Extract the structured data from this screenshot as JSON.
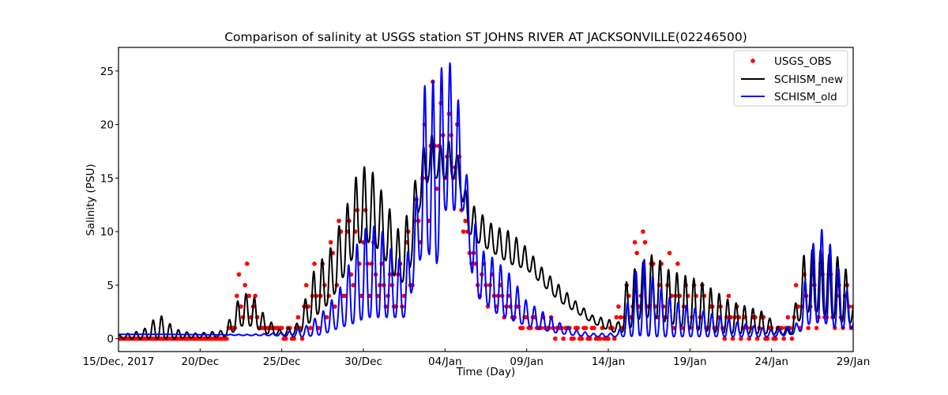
{
  "chart_data": {
    "type": "line",
    "title": "Comparison of salinity at USGS station ST JOHNS RIVER AT JACKSONVILLE(02246500)",
    "xlabel": "Time (Day)",
    "ylabel": "Salinity (PSU)",
    "x_unit": "days since 15/Dec/2017",
    "xlim": [
      0,
      45
    ],
    "ylim": [
      -1.2,
      27.2
    ],
    "x_ticks": [
      {
        "value": 0,
        "label": "15/Dec, 2017"
      },
      {
        "value": 5,
        "label": "20/Dec"
      },
      {
        "value": 10,
        "label": "25/Dec"
      },
      {
        "value": 15,
        "label": "30/Dec"
      },
      {
        "value": 20,
        "label": "04/Jan"
      },
      {
        "value": 25,
        "label": "09/Jan"
      },
      {
        "value": 30,
        "label": "14/Jan"
      },
      {
        "value": 35,
        "label": "19/Jan"
      },
      {
        "value": 40,
        "label": "24/Jan"
      },
      {
        "value": 45,
        "label": "29/Jan"
      }
    ],
    "y_ticks": [
      {
        "value": 0,
        "label": "0"
      },
      {
        "value": 5,
        "label": "5"
      },
      {
        "value": 10,
        "label": "10"
      },
      {
        "value": 15,
        "label": "15"
      },
      {
        "value": 20,
        "label": "20"
      },
      {
        "value": 25,
        "label": "25"
      }
    ],
    "grid": false,
    "legend_position": "top-right",
    "tidal_period_days": 0.5175,
    "series": [
      {
        "name": "USGS_OBS",
        "style": "markers",
        "color": "#ff0000",
        "envelope": {
          "t": [
            0,
            3,
            6.5,
            7,
            7.4,
            7.8,
            8.2,
            8.6,
            9.0,
            9.6,
            10.3,
            11,
            12,
            12.8,
            13.6,
            14.4,
            15.1,
            15.6,
            16.3,
            17,
            17.8,
            18.4,
            18.8,
            19.2,
            19.6,
            20.0,
            20.4,
            20.8,
            21.2,
            21.6,
            22.0,
            22.5,
            23,
            24,
            25,
            26.5,
            27.5,
            29,
            30,
            31.2,
            31.6,
            32.2,
            32.8,
            33.4,
            34.2,
            35,
            36,
            37,
            38,
            39,
            40,
            41,
            42,
            42.6,
            43.2,
            43.8,
            44.4,
            45
          ],
          "base": [
            0.1,
            0.1,
            0.1,
            0.3,
            1.5,
            2.0,
            1.5,
            1.0,
            0.6,
            0.5,
            0.3,
            0.2,
            0.8,
            2.0,
            3.0,
            4.0,
            4.0,
            4.0,
            3.0,
            2.5,
            2.5,
            9.0,
            10.0,
            12.0,
            14.0,
            15.0,
            15.0,
            14.0,
            9.0,
            7.0,
            4.0,
            3.5,
            3.0,
            2.0,
            0.8,
            0.5,
            0.3,
            0.1,
            0.1,
            1.0,
            2.0,
            2.0,
            1.8,
            1.5,
            1.2,
            0.8,
            0.5,
            0.4,
            0.3,
            0.2,
            0.2,
            0.3,
            0.8,
            1.0,
            1.0,
            1.0,
            0.8,
            0.8
          ],
          "peak": [
            0.3,
            0.3,
            0.5,
            2.0,
            7.8,
            7.0,
            6.5,
            3.0,
            1.0,
            0.8,
            1.0,
            2.5,
            8.0,
            10.0,
            12.0,
            16.0,
            12.0,
            9.0,
            8.0,
            5.0,
            14.0,
            17.0,
            21.0,
            25.0,
            25.0,
            24.0,
            22.0,
            20.0,
            12.0,
            10.0,
            8.0,
            7.0,
            6.0,
            4.0,
            2.5,
            2.0,
            1.5,
            0.8,
            0.5,
            7.0,
            10.0,
            11.0,
            9.0,
            8.0,
            7.5,
            6.5,
            5.0,
            4.0,
            3.0,
            2.5,
            1.5,
            2.0,
            7.5,
            8.0,
            7.5,
            7.0,
            6.0,
            5.5
          ]
        }
      },
      {
        "name": "SCHISM_new",
        "style": "line",
        "color": "#000000",
        "envelope": {
          "t": [
            0,
            1.5,
            2.5,
            3.5,
            4.5,
            5.5,
            6.5,
            7,
            7.5,
            8.2,
            9,
            10,
            11,
            12,
            13,
            14,
            14.8,
            15.6,
            16.5,
            17.2,
            17.8,
            18.4,
            19,
            19.6,
            20.2,
            20.8,
            21.4,
            22,
            23,
            24,
            25,
            26,
            27,
            28,
            29,
            30,
            30.6,
            31.2,
            32,
            32.8,
            33.6,
            34.5,
            35.5,
            36.5,
            37.5,
            38.5,
            39.5,
            40.5,
            41.2,
            42,
            42.8,
            43.6,
            44.4,
            45
          ],
          "trough": [
            0.0,
            0.0,
            0.0,
            0.0,
            0.1,
            0.1,
            0.2,
            0.6,
            1.2,
            1.2,
            0.5,
            0.3,
            0.4,
            2.0,
            3.5,
            6.5,
            9.0,
            9.0,
            7.0,
            5.0,
            6.0,
            12.0,
            15.0,
            15.0,
            15.0,
            15.0,
            10.0,
            9.0,
            8.0,
            7.0,
            6.5,
            5.0,
            3.5,
            2.5,
            1.5,
            0.8,
            0.5,
            0.8,
            2.0,
            2.0,
            1.5,
            1.2,
            0.8,
            0.6,
            0.5,
            0.5,
            0.5,
            0.4,
            0.4,
            2.5,
            2.5,
            2.0,
            1.5,
            1.5
          ],
          "crest": [
            0.3,
            0.8,
            2.3,
            0.9,
            0.5,
            0.6,
            0.8,
            2.5,
            4.2,
            4.2,
            2.0,
            0.7,
            1.5,
            6.5,
            8.5,
            12.5,
            16.3,
            15.5,
            12.5,
            10.0,
            12.0,
            16.5,
            19.5,
            18.0,
            18.5,
            17.0,
            13.0,
            12.0,
            10.5,
            10.0,
            8.5,
            6.5,
            5.0,
            3.5,
            2.2,
            1.8,
            1.5,
            6.0,
            7.0,
            8.0,
            6.5,
            6.0,
            5.5,
            4.5,
            3.5,
            3.0,
            2.5,
            1.0,
            1.0,
            8.0,
            8.5,
            7.8,
            7.5,
            3.5
          ]
        }
      },
      {
        "name": "SCHISM_old",
        "style": "line",
        "color": "#0000ff",
        "envelope": {
          "t": [
            0,
            3,
            6,
            8,
            9.5,
            10.5,
            11.5,
            12.5,
            13.5,
            14.5,
            15.2,
            16,
            16.8,
            17.6,
            18.2,
            18.8,
            19.4,
            20.0,
            20.6,
            21.2,
            21.8,
            22.4,
            23,
            24,
            25,
            26,
            27,
            28,
            29,
            30,
            30.6,
            31.2,
            32,
            33,
            34,
            35,
            36,
            37,
            38,
            39,
            40,
            40.8,
            41.6,
            42.4,
            43.2,
            44,
            45
          ],
          "trough": [
            0.4,
            0.4,
            0.35,
            0.3,
            0.3,
            0.2,
            0.2,
            0.4,
            1.0,
            1.5,
            2.0,
            2.0,
            2.0,
            2.0,
            6.0,
            9.0,
            6.0,
            12.0,
            12.0,
            12.0,
            4.0,
            3.5,
            2.5,
            1.8,
            1.2,
            0.8,
            0.5,
            0.3,
            0.2,
            0.2,
            0.2,
            0.2,
            0.3,
            0.2,
            0.2,
            0.2,
            0.2,
            0.2,
            0.2,
            0.2,
            0.2,
            0.3,
            0.5,
            1.5,
            1.5,
            1.0,
            1.0
          ],
          "crest": [
            0.4,
            0.4,
            0.4,
            0.4,
            0.5,
            0.7,
            1.2,
            2.5,
            4.5,
            8.5,
            10.5,
            10.5,
            8.0,
            7.0,
            12.5,
            24.5,
            24.0,
            26.0,
            25.5,
            16.5,
            11.0,
            8.0,
            7.5,
            6.0,
            3.5,
            2.5,
            1.5,
            0.8,
            0.5,
            0.5,
            0.5,
            3.5,
            8.0,
            5.0,
            3.5,
            3.0,
            2.5,
            2.0,
            1.5,
            1.2,
            0.8,
            1.0,
            1.5,
            8.5,
            10.5,
            7.0,
            3.0
          ]
        }
      }
    ]
  }
}
